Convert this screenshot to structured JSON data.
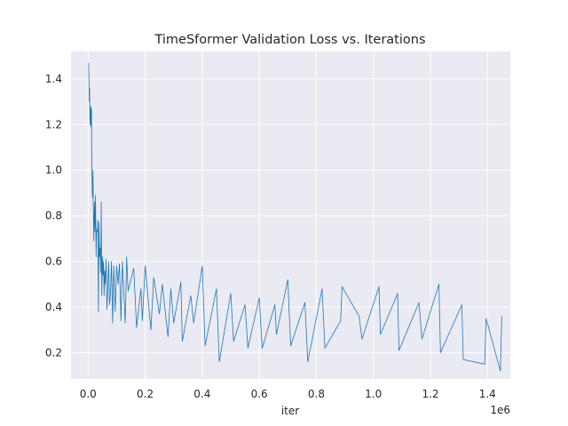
{
  "chart_data": {
    "type": "line",
    "title": "TimeSformer Validation Loss vs. Iterations",
    "xlabel": "iter",
    "ylabel": "",
    "x_scale_label": "1e6",
    "xlim": [
      -0.06,
      1.48
    ],
    "ylim": [
      0.085,
      1.52
    ],
    "xticks": [
      0.0,
      0.2,
      0.4,
      0.6,
      0.8,
      1.0,
      1.2,
      1.4
    ],
    "xtick_labels": [
      "0.0",
      "0.2",
      "0.4",
      "0.6",
      "0.8",
      "1.0",
      "1.2",
      "1.4"
    ],
    "yticks": [
      0.2,
      0.4,
      0.6,
      0.8,
      1.0,
      1.2,
      1.4
    ],
    "ytick_labels": [
      "0.2",
      "0.4",
      "0.6",
      "0.8",
      "1.0",
      "1.2",
      "1.4"
    ],
    "grid": true,
    "background_color": "#eaeaf2",
    "series": [
      {
        "color": "#1f77b4",
        "x": [
          0.002,
          0.004,
          0.005,
          0.007,
          0.009,
          0.01,
          0.012,
          0.013,
          0.015,
          0.017,
          0.018,
          0.02,
          0.022,
          0.024,
          0.026,
          0.028,
          0.03,
          0.032,
          0.034,
          0.036,
          0.038,
          0.04,
          0.042,
          0.044,
          0.046,
          0.048,
          0.05,
          0.052,
          0.054,
          0.056,
          0.058,
          0.06,
          0.063,
          0.066,
          0.069,
          0.072,
          0.075,
          0.078,
          0.082,
          0.086,
          0.09,
          0.095,
          0.1,
          0.105,
          0.11,
          0.115,
          0.12,
          0.13,
          0.135,
          0.14,
          0.16,
          0.17,
          0.185,
          0.19,
          0.2,
          0.22,
          0.23,
          0.25,
          0.26,
          0.28,
          0.29,
          0.3,
          0.325,
          0.33,
          0.36,
          0.37,
          0.4,
          0.41,
          0.45,
          0.46,
          0.5,
          0.51,
          0.55,
          0.56,
          0.6,
          0.61,
          0.655,
          0.66,
          0.7,
          0.71,
          0.76,
          0.77,
          0.82,
          0.83,
          0.885,
          0.89,
          0.95,
          0.96,
          1.02,
          1.025,
          1.085,
          1.09,
          1.16,
          1.17,
          1.23,
          1.235,
          1.31,
          1.315,
          1.39,
          1.395,
          1.445,
          1.45
        ],
        "y": [
          1.47,
          1.3,
          1.36,
          1.2,
          1.28,
          1.19,
          1.27,
          1.0,
          0.88,
          1.0,
          0.86,
          0.69,
          0.86,
          0.73,
          0.89,
          0.62,
          0.74,
          0.73,
          0.78,
          0.38,
          0.77,
          0.62,
          0.66,
          0.55,
          0.86,
          0.45,
          0.62,
          0.54,
          0.6,
          0.45,
          0.56,
          0.5,
          0.61,
          0.39,
          0.48,
          0.6,
          0.41,
          0.45,
          0.6,
          0.33,
          0.58,
          0.38,
          0.58,
          0.5,
          0.59,
          0.34,
          0.6,
          0.33,
          0.62,
          0.47,
          0.57,
          0.31,
          0.48,
          0.34,
          0.58,
          0.3,
          0.53,
          0.37,
          0.5,
          0.27,
          0.48,
          0.33,
          0.51,
          0.25,
          0.45,
          0.33,
          0.58,
          0.23,
          0.48,
          0.16,
          0.46,
          0.25,
          0.41,
          0.22,
          0.44,
          0.22,
          0.41,
          0.28,
          0.52,
          0.23,
          0.42,
          0.16,
          0.48,
          0.22,
          0.34,
          0.49,
          0.36,
          0.26,
          0.49,
          0.28,
          0.46,
          0.21,
          0.42,
          0.26,
          0.5,
          0.2,
          0.41,
          0.17,
          0.15,
          0.35,
          0.12,
          0.36
        ]
      }
    ]
  }
}
